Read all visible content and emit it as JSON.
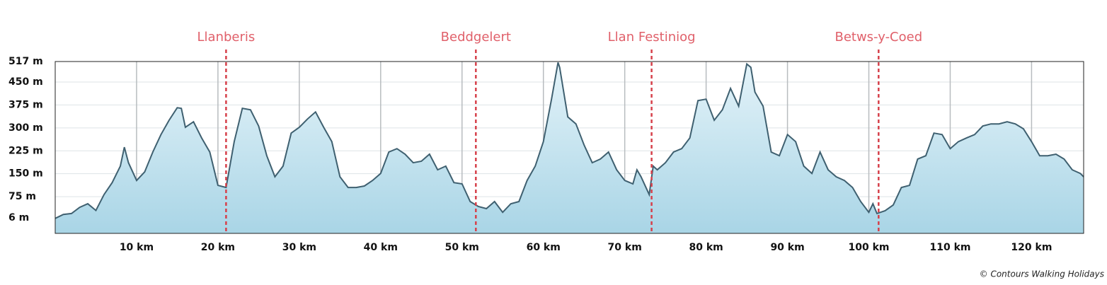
{
  "chart_data": {
    "type": "area",
    "x": [
      0,
      1,
      2,
      3,
      4,
      5,
      6,
      7,
      8,
      8.5,
      9,
      10,
      11,
      12,
      13,
      14,
      15,
      15.5,
      16,
      17,
      18,
      19,
      20,
      21,
      22,
      23,
      24,
      25,
      26,
      27,
      28,
      29,
      30,
      31,
      32,
      33,
      34,
      35,
      36,
      37,
      38,
      39,
      40,
      41,
      42,
      43,
      44,
      45,
      46,
      47,
      48,
      49,
      50,
      51,
      52,
      53,
      54,
      55,
      56,
      57,
      58,
      59,
      60,
      61,
      61.8,
      62,
      63,
      64,
      65,
      66,
      67,
      68,
      69,
      70,
      71,
      71.5,
      72,
      73,
      73.5,
      74,
      75,
      76,
      77,
      78,
      79,
      80,
      81,
      82,
      83,
      84,
      85,
      85.5,
      86,
      87,
      88,
      89,
      90,
      91,
      92,
      93,
      94,
      95,
      96,
      97,
      98,
      99,
      100,
      100.5,
      101,
      102,
      103,
      104,
      105,
      106,
      107,
      108,
      109,
      110,
      111,
      112,
      113,
      114,
      115,
      116,
      117,
      118,
      119,
      120,
      121,
      122,
      123,
      124,
      125,
      126,
      126.4
    ],
    "values": [
      4,
      17,
      20,
      40,
      52,
      30,
      82,
      121,
      175,
      237,
      186,
      128,
      156,
      221,
      278,
      325,
      366,
      364,
      302,
      320,
      267,
      221,
      112,
      105,
      255,
      364,
      359,
      306,
      209,
      140,
      175,
      283,
      302,
      329,
      352,
      302,
      255,
      140,
      105,
      105,
      110,
      128,
      151,
      221,
      232,
      214,
      186,
      191,
      214,
      163,
      175,
      121,
      117,
      59,
      43,
      36,
      59,
      24,
      52,
      59,
      128,
      175,
      255,
      394,
      514,
      498,
      336,
      313,
      244,
      186,
      198,
      221,
      163,
      128,
      117,
      163,
      140,
      82,
      175,
      163,
      186,
      221,
      232,
      267,
      389,
      394,
      325,
      359,
      429,
      371,
      509,
      498,
      417,
      371,
      221,
      209,
      278,
      255,
      175,
      151,
      221,
      163,
      140,
      128,
      105,
      59,
      24,
      52,
      20,
      29,
      48,
      105,
      112,
      198,
      209,
      283,
      278,
      232,
      255,
      267,
      278,
      306,
      313,
      313,
      320,
      313,
      297,
      255,
      209,
      209,
      214,
      198,
      163,
      151,
      140
    ],
    "color": "#3f6070",
    "xlim": [
      0,
      126.4
    ],
    "ylim": [
      -45,
      517
    ],
    "xticks": [
      {
        "value": 10,
        "label": "10 km"
      },
      {
        "value": 20,
        "label": "20 km"
      },
      {
        "value": 30,
        "label": "30 km"
      },
      {
        "value": 40,
        "label": "40 km"
      },
      {
        "value": 50,
        "label": "50 km"
      },
      {
        "value": 60,
        "label": "60 km"
      },
      {
        "value": 70,
        "label": "70 km"
      },
      {
        "value": 80,
        "label": "80 km"
      },
      {
        "value": 90,
        "label": "90 km"
      },
      {
        "value": 100,
        "label": "100 km"
      },
      {
        "value": 110,
        "label": "110 km"
      },
      {
        "value": 120,
        "label": "120 km"
      }
    ],
    "yticks": [
      {
        "value": 6,
        "label": "6 m"
      },
      {
        "value": 75,
        "label": "75 m"
      },
      {
        "value": 150,
        "label": "150 m"
      },
      {
        "value": 225,
        "label": "225 m"
      },
      {
        "value": 300,
        "label": "300 m"
      },
      {
        "value": 375,
        "label": "375 m"
      },
      {
        "value": 450,
        "label": "450 m"
      },
      {
        "value": 517,
        "label": "517 m"
      }
    ],
    "grid": true,
    "annotations": [
      {
        "label": "Llanberis",
        "x": 21.0
      },
      {
        "label": "Beddgelert",
        "x": 51.7
      },
      {
        "label": "Llan Festiniog",
        "x": 73.3
      },
      {
        "label": "Betws-y-Coed",
        "x": 101.2
      }
    ],
    "credit": "© Contours Walking Holidays"
  }
}
